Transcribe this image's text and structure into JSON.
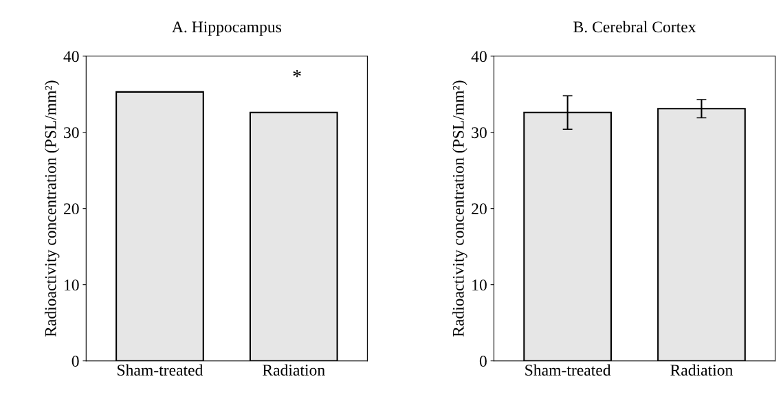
{
  "chart_data": [
    {
      "type": "bar",
      "title": "A. Hippocampus",
      "ylabel": "Radioactivity concentration (PSL/mm²)",
      "categories": [
        "Sham-treated",
        "Radiation"
      ],
      "values": [
        35.3,
        32.6
      ],
      "color": "#e6e6e6",
      "ylim": [
        0,
        40
      ],
      "yticks": [
        0,
        10,
        20,
        30,
        40
      ],
      "grid": false,
      "annotations": [
        "*"
      ]
    },
    {
      "type": "bar",
      "title": "B. Cerebral Cortex",
      "ylabel": "Radioactivity concentration (PSL/mm²)",
      "categories": [
        "Sham-treated",
        "Radiation"
      ],
      "values": [
        32.6,
        33.1
      ],
      "errors": [
        2.2,
        1.2
      ],
      "color": "#e6e6e6",
      "ylim": [
        0,
        40
      ],
      "yticks": [
        0,
        10,
        20,
        30,
        40
      ],
      "grid": false
    }
  ]
}
